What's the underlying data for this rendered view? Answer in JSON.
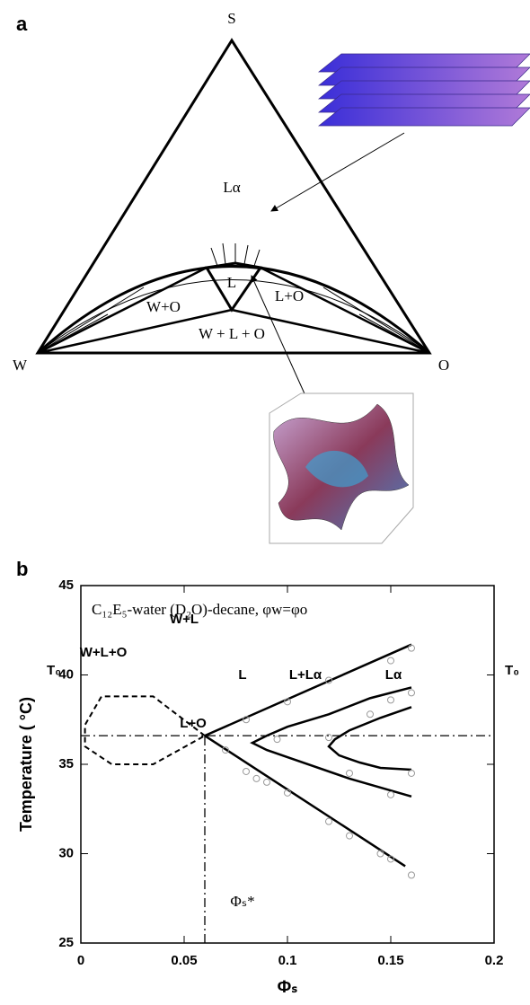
{
  "panel_a": {
    "label": "a",
    "vertex_top": "S",
    "vertex_left": "W",
    "vertex_right": "O",
    "regions": [
      "Lα",
      "L",
      "W+O",
      "L+O",
      "W + L + O"
    ]
  },
  "chart_data": {
    "type": "line",
    "panel_label": "b",
    "annotation": "C₁₂E₅-water (D₂O)-decane, φw=φo",
    "region_labels": [
      "W+L",
      "W+L+O",
      "L+O",
      "L",
      "L+Lα",
      "Lα",
      "T₀",
      "T₀",
      "Φₛ*"
    ],
    "x_label": "Φₛ",
    "y_label": "Temperature ( °C)",
    "xlim": [
      0,
      0.2
    ],
    "xticks": [
      0,
      0.05,
      0.1,
      0.15,
      0.2
    ],
    "ylim": [
      25,
      45
    ],
    "yticks": [
      25,
      30,
      35,
      40,
      45
    ],
    "series": [
      {
        "type": "line",
        "color": "#000000",
        "dash": "solid",
        "x": [
          0.06,
          0.16
        ],
        "values": [
          36.6,
          41.7
        ]
      },
      {
        "type": "line",
        "color": "#000000",
        "dash": "solid",
        "x": [
          0.06,
          0.157
        ],
        "values": [
          36.6,
          29.3
        ]
      },
      {
        "type": "line",
        "color": "#000000",
        "dash": "solid",
        "x": [
          0.16,
          0.14,
          0.12,
          0.1,
          0.09,
          0.083,
          0.09,
          0.1,
          0.13,
          0.16
        ],
        "values": [
          39.3,
          38.7,
          37.8,
          37.1,
          36.6,
          36.2,
          35.8,
          35.4,
          34.2,
          33.2
        ]
      },
      {
        "type": "line",
        "color": "#000000",
        "dash": "solid",
        "x": [
          0.16,
          0.145,
          0.13,
          0.123,
          0.12,
          0.125,
          0.135,
          0.145,
          0.16
        ],
        "values": [
          38.2,
          37.6,
          36.9,
          36.4,
          36.0,
          35.5,
          35.1,
          34.8,
          34.7
        ]
      },
      {
        "type": "line",
        "color": "#000000",
        "dash": "dashed",
        "x": [
          0.06,
          0.035,
          0.01,
          0.002,
          0.002,
          0.015,
          0.035,
          0.06
        ],
        "values": [
          36.6,
          38.8,
          38.8,
          37.2,
          36.0,
          35.0,
          35.0,
          36.6
        ]
      },
      {
        "type": "line",
        "color": "#000000",
        "dash": "dashdot",
        "x": [
          0,
          0.2
        ],
        "values": [
          36.6,
          36.6
        ]
      },
      {
        "type": "line",
        "color": "#000000",
        "dash": "dashdot",
        "x": [
          0.06,
          0.06
        ],
        "values": [
          25,
          36.6
        ]
      },
      {
        "type": "scatter",
        "color": "#999999",
        "x": [
          0.16,
          0.15,
          0.145,
          0.13,
          0.12,
          0.1,
          0.09,
          0.085,
          0.08,
          0.07,
          0.15,
          0.16,
          0.12,
          0.1,
          0.08,
          0.15,
          0.16,
          0.14,
          0.16,
          0.15,
          0.13,
          0.12,
          0.095
        ],
        "values": [
          28.8,
          29.7,
          30.0,
          31.0,
          31.8,
          33.4,
          34.0,
          34.2,
          34.6,
          35.8,
          40.8,
          41.5,
          39.7,
          38.5,
          37.5,
          38.6,
          39.0,
          37.8,
          34.5,
          33.3,
          34.5,
          36.5,
          36.4
        ]
      }
    ]
  }
}
